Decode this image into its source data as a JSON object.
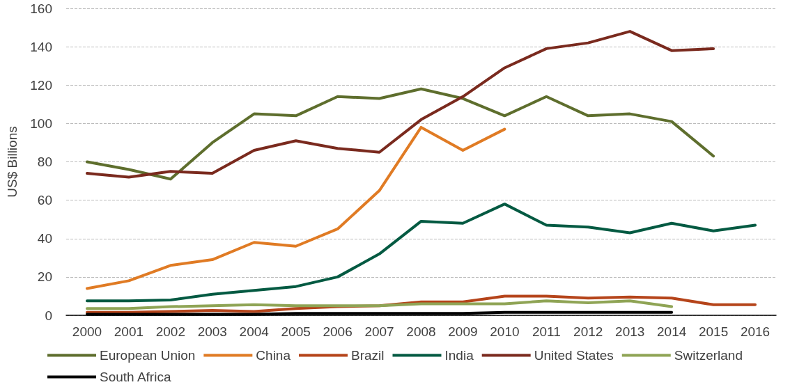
{
  "chart_data": {
    "type": "line",
    "ylabel": "US$ Billions",
    "categories": [
      "2000",
      "2001",
      "2002",
      "2003",
      "2004",
      "2005",
      "2006",
      "2007",
      "2008",
      "2009",
      "2010",
      "2011",
      "2012",
      "2013",
      "2014",
      "2015",
      "2016"
    ],
    "series": [
      {
        "name": "European Union",
        "color": "#5e6e2d",
        "values": [
          80,
          76,
          71,
          90,
          105,
          104,
          114,
          113,
          118,
          113,
          104,
          114,
          104,
          105,
          101,
          83,
          null
        ]
      },
      {
        "name": "China",
        "color": "#e07b24",
        "values": [
          14,
          18,
          26,
          29,
          38,
          36,
          45,
          65,
          98,
          86,
          97,
          null,
          null,
          null,
          null,
          null,
          null
        ]
      },
      {
        "name": "Brazil",
        "color": "#b5441a",
        "values": [
          1.5,
          1.5,
          2,
          2.5,
          2,
          3.5,
          4.5,
          5,
          7,
          7,
          10,
          10,
          9,
          9.5,
          9,
          5.5,
          5.5
        ]
      },
      {
        "name": "India",
        "color": "#045a42",
        "values": [
          7.5,
          7.5,
          8,
          11,
          13,
          15,
          20,
          32,
          49,
          48,
          58,
          47,
          46,
          43,
          48,
          44,
          47
        ]
      },
      {
        "name": "United States",
        "color": "#7a2a1e",
        "values": [
          74,
          72,
          75,
          74,
          86,
          91,
          87,
          85,
          102,
          114,
          129,
          139,
          142,
          148,
          138,
          139,
          null
        ]
      },
      {
        "name": "Switzerland",
        "color": "#8fa455",
        "values": [
          3.5,
          3.5,
          4.5,
          5,
          5.5,
          5,
          5,
          5,
          6,
          6,
          6,
          7.5,
          6.5,
          7.5,
          4.5,
          null,
          null
        ]
      },
      {
        "name": "South Africa",
        "color": "#000000",
        "values": [
          0.5,
          0.5,
          0.5,
          0.5,
          0.5,
          1,
          1,
          1,
          1,
          1,
          1.5,
          1.5,
          1.5,
          1.5,
          1.5,
          null,
          null
        ]
      }
    ],
    "ylim": [
      0,
      160
    ],
    "yticks": [
      0,
      20,
      40,
      60,
      80,
      100,
      120,
      140,
      160
    ],
    "grid": "y",
    "legend": "bottom",
    "marker": "none",
    "line_style": "solid"
  }
}
